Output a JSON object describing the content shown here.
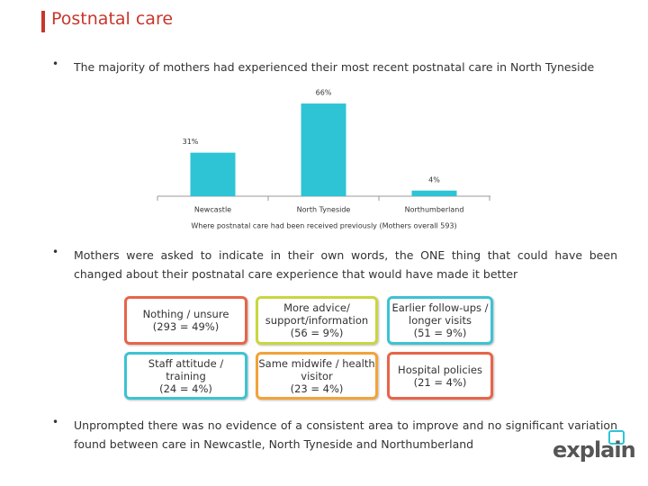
{
  "title": "Postnatal care",
  "bullets": [
    "The majority of mothers had experienced their most recent postnatal care in North Tyneside",
    "Mothers were asked to indicate in their own words, the ONE thing that could have been changed about their postnatal care experience that would have made it better",
    "Unprompted there was no evidence of a consistent area to improve and no significant variation found between care in Newcastle, North Tyneside and Northumberland"
  ],
  "chart_data": {
    "type": "bar",
    "x_label": "Where postnatal care had been received previously (Mothers overall 593)",
    "categories": [
      "Newcastle",
      "North Tyneside",
      "Northumberland"
    ],
    "values": [
      31,
      66,
      4
    ],
    "value_labels": [
      "31%",
      "66%",
      "4%"
    ],
    "color": "#2ec4d6"
  },
  "boxes": [
    {
      "lines": [
        "Nothing / unsure",
        "(293 = 49%)"
      ],
      "color": "#e8644a"
    },
    {
      "lines": [
        "More advice/",
        "support/information",
        "(56 = 9%)"
      ],
      "color": "#c9d640"
    },
    {
      "lines": [
        "Earlier follow-ups /",
        "longer visits",
        "(51 = 9%)"
      ],
      "color": "#3cc3d3"
    },
    {
      "lines": [
        "Staff attitude /",
        "training",
        "(24 = 4%)"
      ],
      "color": "#3cc3d3"
    },
    {
      "lines": [
        "Same midwife / health",
        "visitor",
        "(23 = 4%)"
      ],
      "color": "#f2a33a"
    },
    {
      "lines": [
        "Hospital policies",
        "(21 = 4%)"
      ],
      "color": "#e8644a"
    }
  ],
  "logo": "explain"
}
